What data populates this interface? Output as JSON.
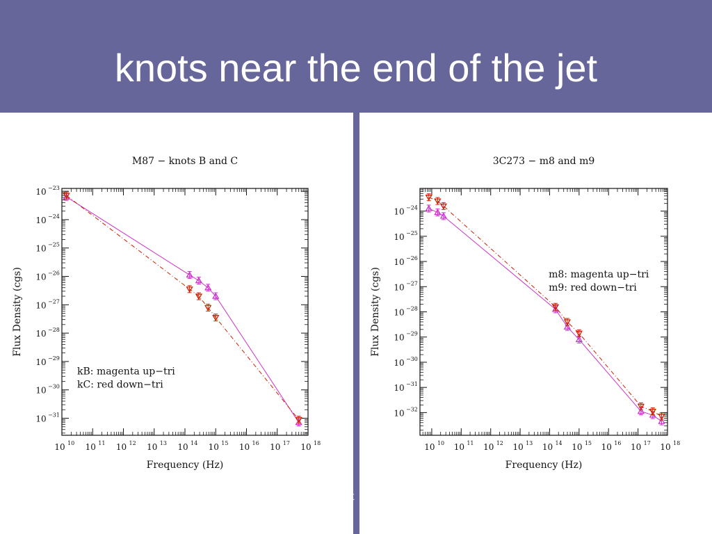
{
  "slide": {
    "title": "knots near the end of the jet",
    "footer_fragment": "st"
  },
  "colors": {
    "header_bg": "#66669a",
    "magenta": "#cc33cc",
    "red": "#cc2200"
  },
  "chart_data": [
    {
      "type": "line",
      "title": "M87 − knots B and C",
      "xlabel": "Frequency (Hz)",
      "ylabel": "Flux Density (cgs)",
      "x_scale": "log",
      "y_scale": "log",
      "xlim_log10": [
        10,
        18
      ],
      "ylim_log10": [
        -31.6,
        -22.9
      ],
      "x_ticks": [
        {
          "exp": 10,
          "label": "10",
          "sup": "10"
        },
        {
          "exp": 11,
          "label": "10",
          "sup": "11"
        },
        {
          "exp": 12,
          "label": "10",
          "sup": "12"
        },
        {
          "exp": 13,
          "label": "10",
          "sup": "13"
        },
        {
          "exp": 14,
          "label": "10",
          "sup": "14"
        },
        {
          "exp": 15,
          "label": "10",
          "sup": "15"
        },
        {
          "exp": 16,
          "label": "10",
          "sup": "16"
        },
        {
          "exp": 17,
          "label": "10",
          "sup": "17"
        },
        {
          "exp": 18,
          "label": "10",
          "sup": "18"
        }
      ],
      "y_ticks": [
        {
          "exp": -23,
          "label": "10",
          "sup": "−23"
        },
        {
          "exp": -24,
          "label": "10",
          "sup": "−24"
        },
        {
          "exp": -25,
          "label": "10",
          "sup": "−25"
        },
        {
          "exp": -26,
          "label": "10",
          "sup": "−26"
        },
        {
          "exp": -27,
          "label": "10",
          "sup": "−27"
        },
        {
          "exp": -28,
          "label": "10",
          "sup": "−28"
        },
        {
          "exp": -29,
          "label": "10",
          "sup": "−29"
        },
        {
          "exp": -30,
          "label": "10",
          "sup": "−30"
        },
        {
          "exp": -31,
          "label": "10",
          "sup": "−31"
        }
      ],
      "legend": {
        "position": "lower-left",
        "lines": [
          "kB: magenta up−tri",
          "kC: red down−tri"
        ]
      },
      "series": [
        {
          "marker": "up-tri",
          "line": "solid",
          "color": "#cc33cc",
          "points": [
            [
              10.15,
              -23.2
            ],
            [
              14.15,
              -25.95
            ],
            [
              14.45,
              -26.15
            ],
            [
              14.75,
              -26.4
            ],
            [
              15.0,
              -26.7
            ],
            [
              17.7,
              -31.15
            ]
          ]
        },
        {
          "marker": "down-tri",
          "line": "dashed",
          "color": "#cc2200",
          "points": [
            [
              10.15,
              -23.15
            ],
            [
              14.15,
              -26.45
            ],
            [
              14.45,
              -26.7
            ],
            [
              14.75,
              -27.1
            ],
            [
              15.0,
              -27.45
            ],
            [
              17.7,
              -31.05
            ]
          ]
        }
      ]
    },
    {
      "type": "line",
      "title": "3C273 − m8 and m9",
      "xlabel": "Frequency (Hz)",
      "ylabel": "Flux Density (cgs)",
      "x_scale": "log",
      "y_scale": "log",
      "xlim_log10": [
        9.6,
        18
      ],
      "ylim_log10": [
        -32.9,
        -23.1
      ],
      "x_ticks": [
        {
          "exp": 10,
          "label": "10",
          "sup": "10"
        },
        {
          "exp": 11,
          "label": "10",
          "sup": "11"
        },
        {
          "exp": 12,
          "label": "10",
          "sup": "12"
        },
        {
          "exp": 13,
          "label": "10",
          "sup": "13"
        },
        {
          "exp": 14,
          "label": "10",
          "sup": "14"
        },
        {
          "exp": 15,
          "label": "10",
          "sup": "15"
        },
        {
          "exp": 16,
          "label": "10",
          "sup": "16"
        },
        {
          "exp": 17,
          "label": "10",
          "sup": "17"
        },
        {
          "exp": 18,
          "label": "10",
          "sup": "18"
        }
      ],
      "y_ticks": [
        {
          "exp": -24,
          "label": "10",
          "sup": "−24"
        },
        {
          "exp": -25,
          "label": "10",
          "sup": "−25"
        },
        {
          "exp": -26,
          "label": "10",
          "sup": "−26"
        },
        {
          "exp": -27,
          "label": "10",
          "sup": "−27"
        },
        {
          "exp": -28,
          "label": "10",
          "sup": "−28"
        },
        {
          "exp": -29,
          "label": "10",
          "sup": "−29"
        },
        {
          "exp": -30,
          "label": "10",
          "sup": "−30"
        },
        {
          "exp": -31,
          "label": "10",
          "sup": "−31"
        },
        {
          "exp": -32,
          "label": "10",
          "sup": "−32"
        }
      ],
      "legend": {
        "position": "upper-right",
        "lines": [
          "m8: magenta up−tri",
          "m9: red down−tri"
        ]
      },
      "series": [
        {
          "marker": "up-tri",
          "line": "solid",
          "color": "#cc33cc",
          "points": [
            [
              9.9,
              -23.9
            ],
            [
              10.2,
              -24.05
            ],
            [
              10.4,
              -24.2
            ],
            [
              14.2,
              -27.9
            ],
            [
              14.6,
              -28.6
            ],
            [
              15.0,
              -29.1
            ],
            [
              17.1,
              -31.95
            ],
            [
              17.5,
              -32.1
            ],
            [
              17.8,
              -32.35
            ]
          ]
        },
        {
          "marker": "down-tri",
          "line": "dashed",
          "color": "#cc2200",
          "points": [
            [
              9.9,
              -23.45
            ],
            [
              10.2,
              -23.6
            ],
            [
              10.4,
              -23.8
            ],
            [
              14.2,
              -27.8
            ],
            [
              14.6,
              -28.4
            ],
            [
              15.0,
              -28.85
            ],
            [
              17.1,
              -31.75
            ],
            [
              17.5,
              -31.95
            ],
            [
              17.8,
              -32.15
            ]
          ]
        }
      ]
    }
  ]
}
